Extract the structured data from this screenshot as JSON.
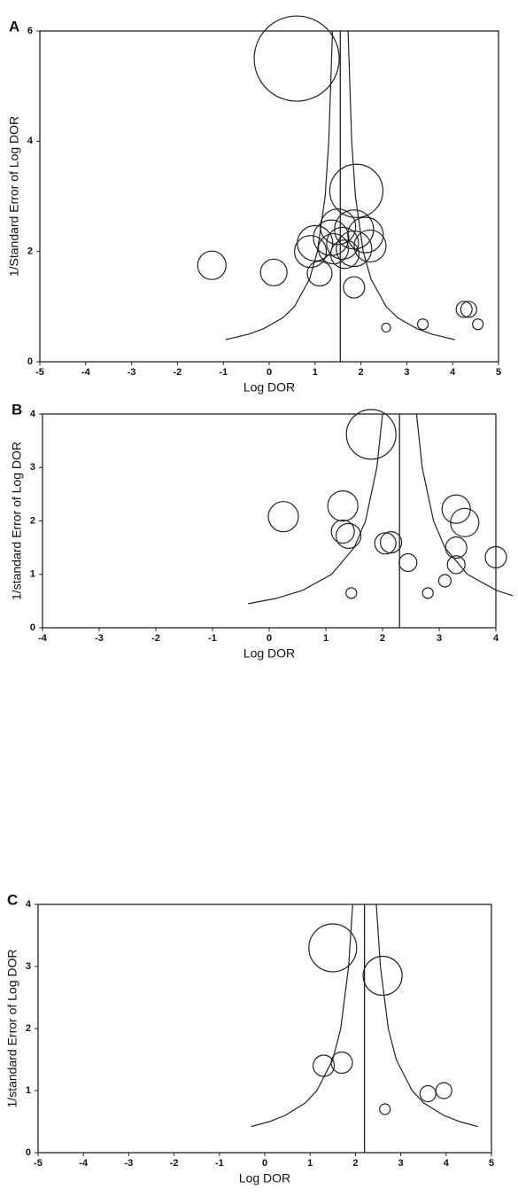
{
  "chart_data": [
    {
      "type": "bubble",
      "panel_label": "A",
      "x_label": "Log DOR",
      "y_label": "1/Standard Error of Log DOR",
      "xlim": [
        -5,
        5
      ],
      "ylim": [
        0,
        6
      ],
      "xticks": [
        -5,
        -4,
        -3,
        -2,
        -1,
        0,
        1,
        2,
        3,
        4,
        5
      ],
      "yticks": [
        0,
        2,
        4,
        6
      ],
      "points": {
        "x": [
          0.6,
          1.9,
          1.5,
          1.85,
          2.1,
          1.35,
          1.0,
          1.6,
          1.85,
          2.2,
          1.4,
          0.9,
          1.65,
          -1.25,
          0.1,
          1.1,
          1.85,
          4.25,
          4.35,
          4.55,
          3.35,
          2.55
        ],
        "y": [
          5.5,
          3.1,
          2.45,
          2.4,
          2.3,
          2.25,
          2.15,
          2.15,
          2.05,
          2.1,
          2.05,
          2.0,
          1.95,
          1.75,
          1.62,
          1.6,
          1.35,
          0.95,
          0.95,
          0.68,
          0.68,
          0.62
        ],
        "sizes": [
          48,
          30,
          20,
          22,
          20,
          20,
          20,
          18,
          20,
          18,
          17,
          18,
          16,
          16,
          15,
          14,
          12,
          9,
          9,
          6,
          6,
          5
        ]
      },
      "reference_line_x": 1.55,
      "funnel": {
        "left": {
          "x": [
            -0.95,
            -0.45,
            -0.12,
            0.3,
            0.55,
            0.88,
            1.05,
            1.22,
            1.3,
            1.38
          ],
          "y": [
            0.4,
            0.5,
            0.6,
            0.8,
            1,
            1.5,
            2,
            3,
            4,
            6
          ]
        },
        "right": {
          "x": [
            4.05,
            3.55,
            3.22,
            2.8,
            2.55,
            2.22,
            2.05,
            1.88,
            1.8,
            1.72
          ],
          "y": [
            0.4,
            0.5,
            0.6,
            0.8,
            1,
            1.5,
            2,
            3,
            4,
            6
          ]
        }
      }
    },
    {
      "type": "bubble",
      "panel_label": "B",
      "x_label": "Log DOR",
      "y_label": "1/standard Error of Log DOR",
      "xlim": [
        -4,
        4
      ],
      "ylim": [
        0,
        4
      ],
      "xticks": [
        -4,
        -3,
        -2,
        -1,
        0,
        1,
        2,
        3,
        4
      ],
      "yticks": [
        0,
        1,
        2,
        3,
        4
      ],
      "points": {
        "x": [
          1.8,
          0.25,
          1.3,
          3.3,
          3.45,
          1.3,
          1.4,
          2.15,
          2.05,
          3.3,
          4.0,
          2.45,
          3.3,
          3.1,
          1.45,
          2.8
        ],
        "y": [
          3.62,
          2.08,
          2.28,
          2.22,
          1.97,
          1.8,
          1.72,
          1.6,
          1.58,
          1.5,
          1.32,
          1.22,
          1.18,
          0.88,
          0.65,
          0.65
        ],
        "sizes": [
          28,
          17,
          17,
          16,
          16,
          13,
          14,
          12,
          12,
          12,
          12,
          10,
          10,
          7,
          6,
          6
        ]
      },
      "reference_line_x": 2.3,
      "funnel": {
        "left": {
          "x": [
            -0.37,
            0.12,
            0.59,
            1.1,
            1.5,
            1.7,
            1.9,
            2.0
          ],
          "y": [
            0.45,
            0.55,
            0.7,
            1,
            1.5,
            2,
            3,
            4
          ]
        },
        "right": {
          "x": [
            4.3,
            4.01,
            3.5,
            3.1,
            2.9,
            2.7,
            2.6
          ],
          "y": [
            0.6,
            0.7,
            1,
            1.5,
            2,
            3,
            4
          ]
        }
      }
    },
    {
      "type": "bubble",
      "panel_label": "C",
      "x_label": "Log DOR",
      "y_label": "1/standard Error of Log DOR",
      "xlim": [
        -5,
        5
      ],
      "ylim": [
        0,
        4
      ],
      "xticks": [
        -5,
        -4,
        -3,
        -2,
        -1,
        0,
        1,
        2,
        3,
        4,
        5
      ],
      "yticks": [
        0,
        1,
        2,
        3,
        4
      ],
      "points": {
        "x": [
          1.5,
          2.6,
          1.3,
          1.7,
          3.6,
          3.95,
          2.65
        ],
        "y": [
          3.3,
          2.85,
          1.4,
          1.45,
          0.95,
          1.0,
          0.7
        ],
        "sizes": [
          27,
          22,
          12,
          12,
          9,
          9,
          6
        ]
      },
      "reference_line_x": 2.2,
      "funnel": {
        "left": {
          "x": [
            -0.3,
            0.1,
            0.45,
            0.89,
            1.15,
            1.5,
            1.675,
            1.85,
            1.94
          ],
          "y": [
            0.42,
            0.5,
            0.6,
            0.8,
            1,
            1.5,
            2,
            3,
            4
          ]
        },
        "right": {
          "x": [
            4.7,
            4.3,
            3.95,
            3.51,
            3.25,
            2.9,
            2.725,
            2.55,
            2.46
          ],
          "y": [
            0.42,
            0.5,
            0.6,
            0.8,
            1,
            1.5,
            2,
            3,
            4
          ]
        }
      }
    }
  ]
}
